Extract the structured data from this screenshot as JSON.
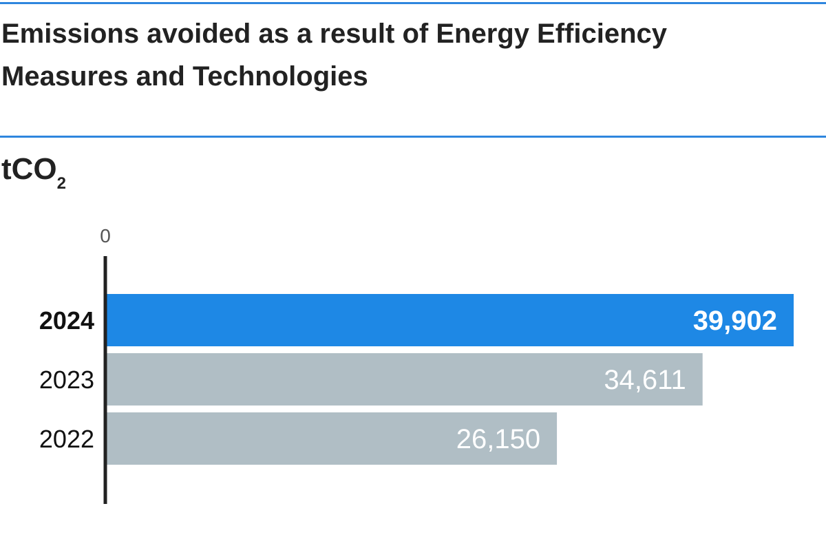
{
  "title": "Emissions avoided as a result of Energy Efficiency Measures and Technologies",
  "unit": {
    "base": "tCO",
    "subscript": "2"
  },
  "colors": {
    "accent": "#2e86de",
    "highlight_bar": "#1e88e5",
    "bar": "#b0bec5",
    "axis": "#222222"
  },
  "chart_data": {
    "type": "bar",
    "orientation": "horizontal",
    "categories": [
      "2024",
      "2023",
      "2022"
    ],
    "values": [
      39902,
      34611,
      26150
    ],
    "value_labels": [
      "39,902",
      "34,611",
      "26,150"
    ],
    "highlight": "2024",
    "ylabel": "tCO2",
    "xlim": [
      0,
      40500
    ],
    "ticks": [
      "0"
    ],
    "legend": "none",
    "grid": false
  }
}
